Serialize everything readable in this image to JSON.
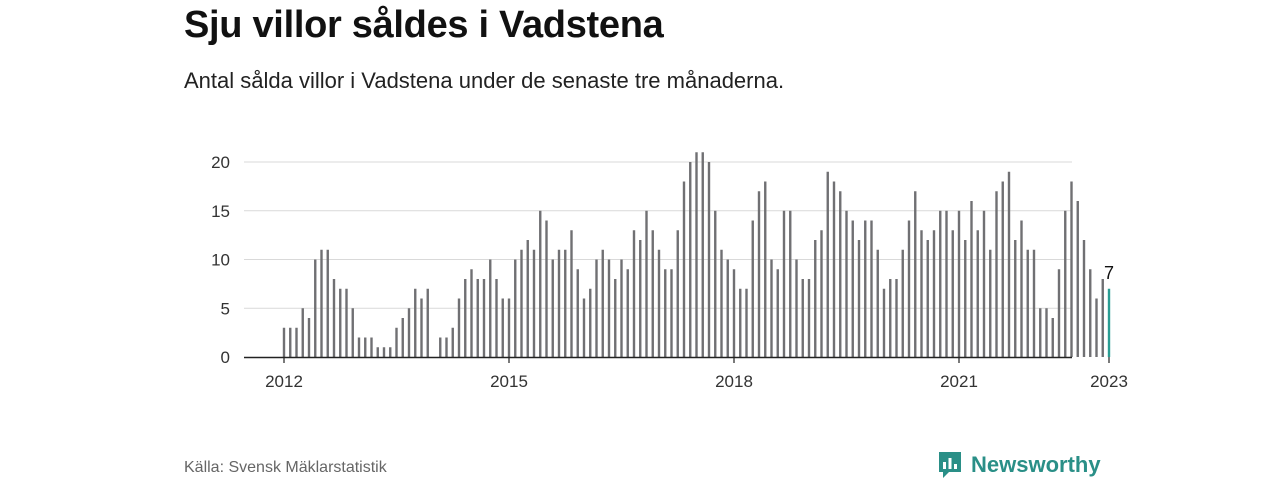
{
  "title": "Sju villor såldes i Vadstena",
  "subtitle": "Antal sålda villor i Vadstena under de senaste tre månaderna.",
  "source": "Källa: Svensk Mäklarstatistik",
  "brand": {
    "name": "Newsworthy",
    "icon": "newsworthy-logo-icon"
  },
  "colors": {
    "bar": "#707073",
    "highlight": "#2a9d93",
    "grid": "#d9d9d9",
    "axis": "#222222"
  },
  "chart_data": {
    "type": "bar",
    "title": "Sju villor såldes i Vadstena",
    "x_tick_labels": [
      "2012",
      "2015",
      "2018",
      "2021",
      "2023"
    ],
    "y_tick_labels": [
      "0",
      "5",
      "10",
      "15",
      "20"
    ],
    "ylim": [
      0,
      21
    ],
    "grid": true,
    "highlight_label": "7",
    "series": [
      {
        "values": [
          3,
          3,
          3,
          5,
          4,
          10,
          11,
          11,
          8,
          7,
          7,
          5,
          2,
          2,
          2,
          1,
          1,
          1,
          3,
          4,
          5,
          7,
          6,
          7,
          0,
          2,
          2,
          3,
          6,
          8,
          9,
          8,
          8,
          10,
          8,
          6,
          6,
          10,
          11,
          12,
          11,
          15,
          14,
          10,
          11,
          11,
          13,
          9,
          6,
          7,
          10,
          11,
          10,
          8,
          10,
          9,
          13,
          12,
          15,
          13,
          11,
          9,
          9,
          13,
          18,
          20,
          21,
          21,
          20,
          15,
          11,
          10,
          9,
          7,
          7,
          14,
          17,
          18,
          10,
          9,
          15,
          15,
          10,
          8,
          8,
          12,
          13,
          19,
          18,
          17,
          15,
          14,
          12,
          14,
          14,
          11,
          7,
          8,
          8,
          11,
          14,
          17,
          13,
          12,
          13,
          15,
          15,
          13,
          15,
          12,
          16,
          13,
          15,
          11,
          17,
          18,
          19,
          12,
          14,
          11,
          11,
          5,
          5,
          4,
          9,
          15,
          18,
          16,
          12,
          9,
          6,
          8,
          7
        ]
      }
    ]
  }
}
